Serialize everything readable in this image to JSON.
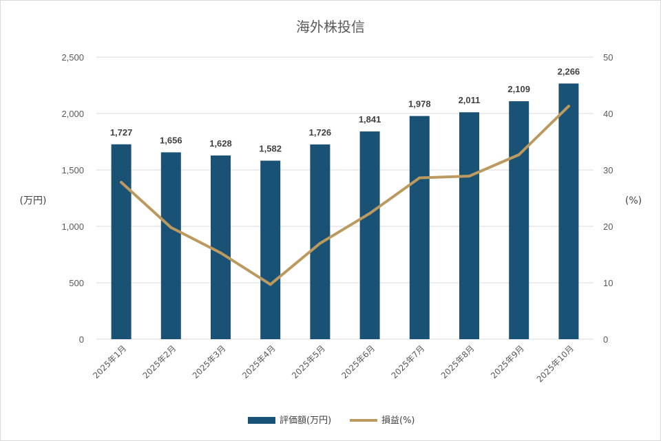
{
  "chart_data": {
    "type": "bar",
    "title": "海外株投信",
    "categories": [
      "2025年1月",
      "2025年2月",
      "2025年3月",
      "2025年4月",
      "2025年5月",
      "2025年6月",
      "2025年7月",
      "2025年8月",
      "2025年9月",
      "2025年10月"
    ],
    "series": [
      {
        "name": "評価額(万円)",
        "type": "bar",
        "axis": "left",
        "color": "#1a5276",
        "values": [
          1727,
          1656,
          1628,
          1582,
          1726,
          1841,
          1978,
          2011,
          2109,
          2266
        ],
        "data_labels": [
          "1,727",
          "1,656",
          "1,628",
          "1,582",
          "1,726",
          "1,841",
          "1,978",
          "2,011",
          "2,109",
          "2,266"
        ]
      },
      {
        "name": "損益(%)",
        "type": "line",
        "axis": "right",
        "color": "#bc9a5f",
        "values": [
          27.8,
          19.8,
          15.3,
          9.7,
          17.0,
          22.3,
          28.6,
          28.9,
          32.7,
          41.3
        ]
      }
    ],
    "y_left": {
      "label": "(万円)",
      "min": 0,
      "max": 2500,
      "ticks": [
        "0",
        "500",
        "1,000",
        "1,500",
        "2,000",
        "2,500"
      ],
      "tick_values": [
        0,
        500,
        1000,
        1500,
        2000,
        2500
      ]
    },
    "y_right": {
      "label": "(%)",
      "min": 0,
      "max": 50,
      "ticks": [
        "0",
        "10",
        "20",
        "30",
        "40",
        "50"
      ],
      "tick_values": [
        0,
        10,
        20,
        30,
        40,
        50
      ]
    },
    "grid": true,
    "legend": "bottom"
  }
}
